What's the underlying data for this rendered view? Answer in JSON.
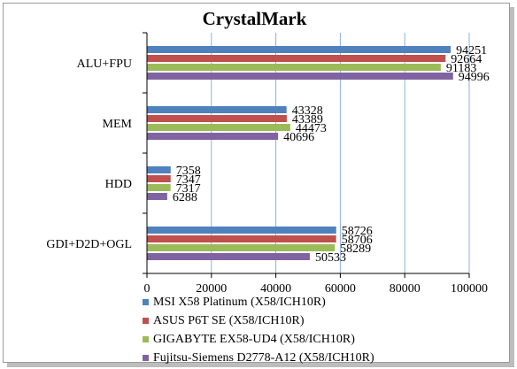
{
  "chart_data": {
    "type": "bar",
    "orientation": "horizontal",
    "title": "CrystalMark",
    "categories": [
      "ALU+FPU",
      "MEM",
      "HDD",
      "GDI+D2D+OGL"
    ],
    "series": [
      {
        "name": "MSI X58 Platinum (X58/ICH10R)",
        "color": "#4f81bd",
        "values": [
          94251,
          43328,
          7358,
          58726
        ]
      },
      {
        "name": "ASUS P6T SE (X58/ICH10R)",
        "color": "#c0504d",
        "values": [
          92664,
          43389,
          7347,
          58706
        ]
      },
      {
        "name": "GIGABYTE EX58-UD4 (X58/ICH10R)",
        "color": "#9bbb59",
        "values": [
          91183,
          44473,
          7317,
          58289
        ]
      },
      {
        "name": "Fujitsu-Siemens D2778-A12 (X58/ICH10R)",
        "color": "#8064a2",
        "values": [
          94996,
          40696,
          6288,
          50533
        ]
      }
    ],
    "xlim": [
      0,
      100000
    ],
    "xticks": [
      0,
      20000,
      40000,
      60000,
      80000,
      100000
    ],
    "grid": true,
    "legend": "bottom"
  }
}
